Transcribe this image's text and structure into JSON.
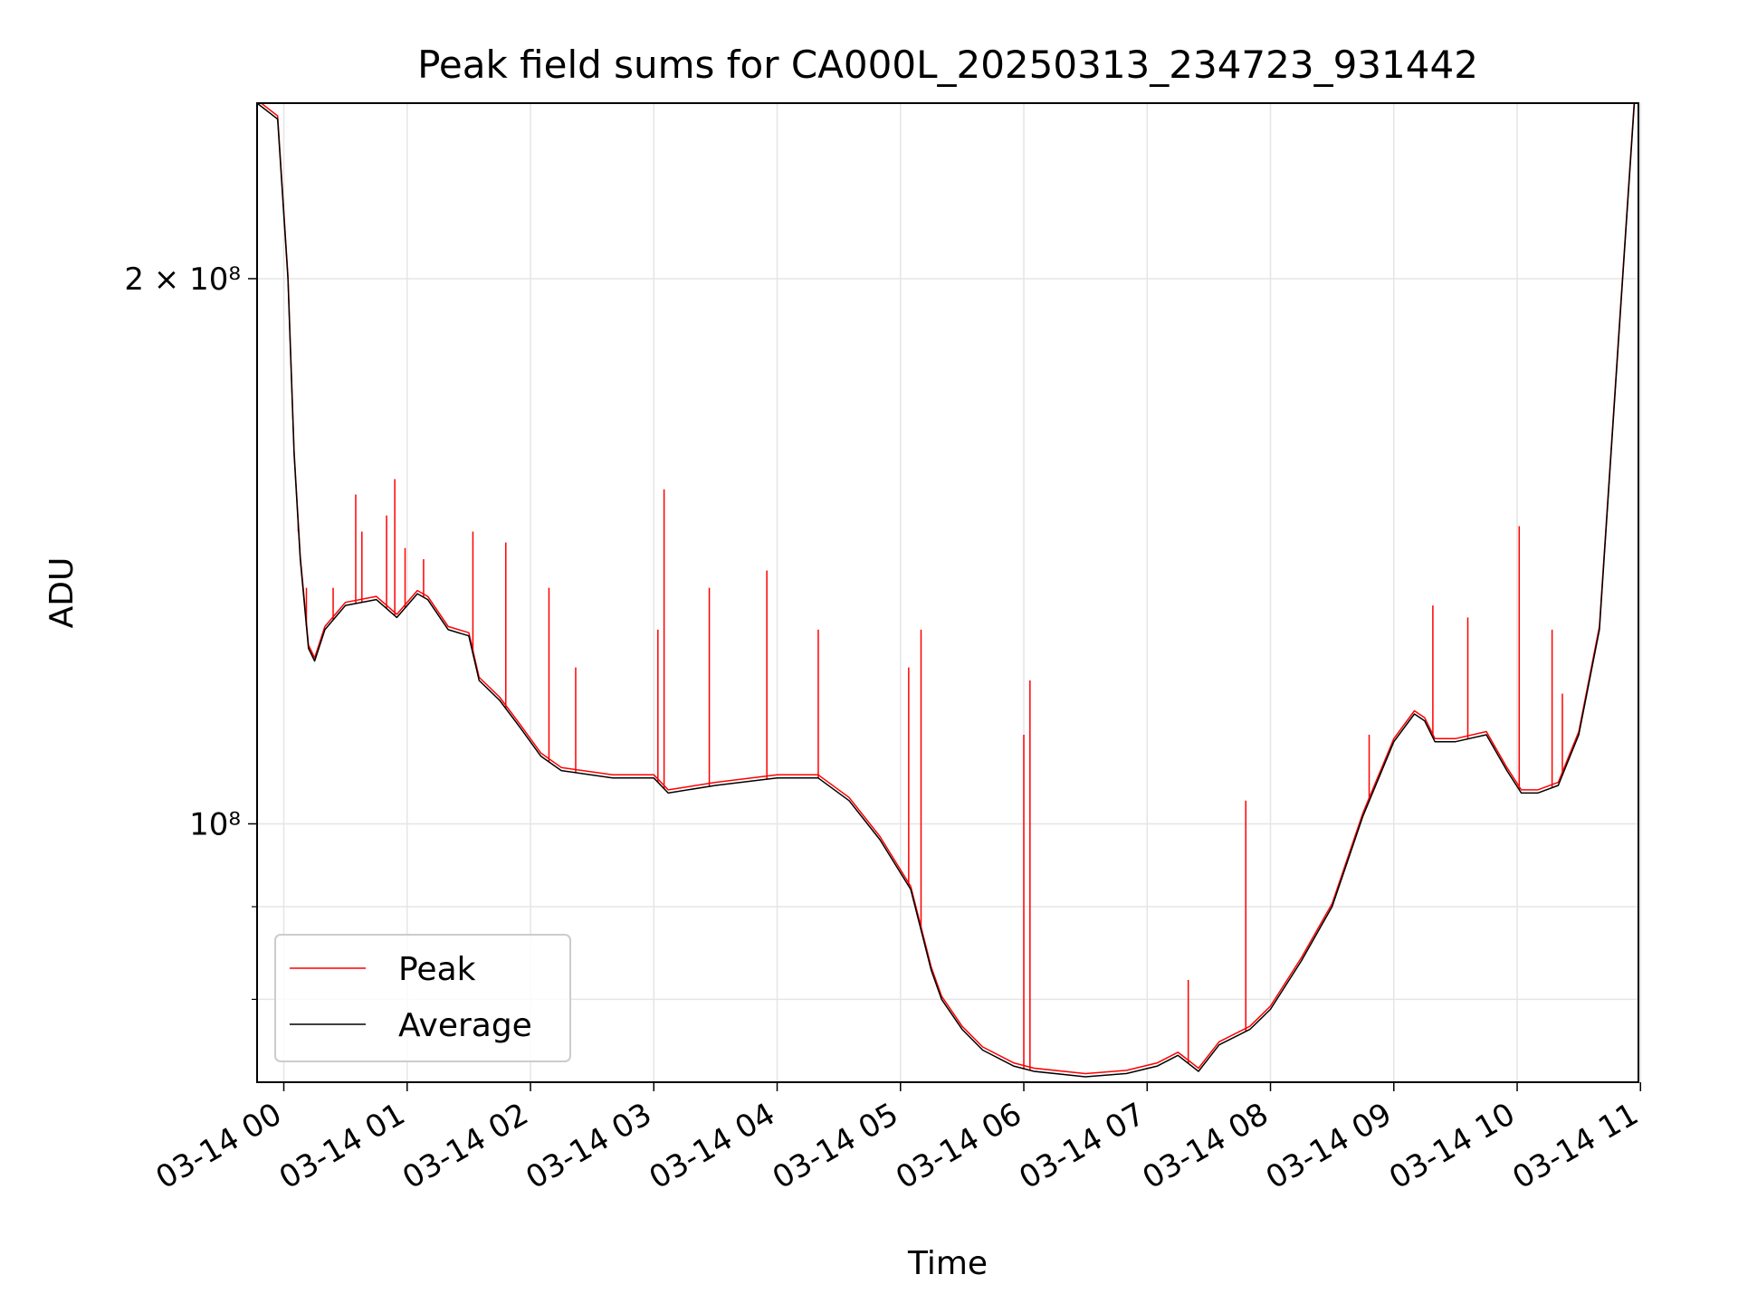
{
  "chart_data": {
    "type": "line",
    "title": "Peak field sums for CA000L_20250313_234723_931442",
    "xlabel": "Time",
    "ylabel": "ADU",
    "y_scale": "log",
    "ylim": [
      72000000,
      250000000
    ],
    "xlim": [
      "2025-03-13 23:47",
      "2025-03-14 10:59"
    ],
    "grid": true,
    "legend": {
      "position": "lower-left",
      "entries": [
        "Peak",
        "Average"
      ]
    },
    "x_ticks": [
      "03-14 00",
      "03-14 01",
      "03-14 02",
      "03-14 03",
      "03-14 04",
      "03-14 05",
      "03-14 06",
      "03-14 07",
      "03-14 08",
      "03-14 09",
      "03-14 10",
      "03-14 11"
    ],
    "y_tick_labels": [
      "2 × 10⁸",
      "10⁸"
    ],
    "colors": {
      "peak": "#ff0000",
      "average": "#000000",
      "grid": "#e5e5e5"
    },
    "series": [
      {
        "name": "Average",
        "x": [
          "2025-03-13 23:47",
          "2025-03-13 23:57",
          "2025-03-14 00:02",
          "2025-03-14 00:05",
          "2025-03-14 00:08",
          "2025-03-14 00:12",
          "2025-03-14 00:15",
          "2025-03-14 00:20",
          "2025-03-14 00:30",
          "2025-03-14 00:45",
          "2025-03-14 00:55",
          "2025-03-14 01:05",
          "2025-03-14 01:10",
          "2025-03-14 01:20",
          "2025-03-14 01:30",
          "2025-03-14 01:35",
          "2025-03-14 01:45",
          "2025-03-14 01:55",
          "2025-03-14 02:05",
          "2025-03-14 02:15",
          "2025-03-14 02:40",
          "2025-03-14 03:00",
          "2025-03-14 03:07",
          "2025-03-14 03:30",
          "2025-03-14 04:00",
          "2025-03-14 04:20",
          "2025-03-14 04:35",
          "2025-03-14 04:50",
          "2025-03-14 05:05",
          "2025-03-14 05:15",
          "2025-03-14 05:20",
          "2025-03-14 05:30",
          "2025-03-14 05:40",
          "2025-03-14 05:55",
          "2025-03-14 06:05",
          "2025-03-14 06:30",
          "2025-03-14 06:50",
          "2025-03-14 07:05",
          "2025-03-14 07:15",
          "2025-03-14 07:25",
          "2025-03-14 07:35",
          "2025-03-14 07:50",
          "2025-03-14 08:00",
          "2025-03-14 08:15",
          "2025-03-14 08:30",
          "2025-03-14 08:45",
          "2025-03-14 09:00",
          "2025-03-14 09:10",
          "2025-03-14 09:15",
          "2025-03-14 09:20",
          "2025-03-14 09:30",
          "2025-03-14 09:45",
          "2025-03-14 09:55",
          "2025-03-14 10:02",
          "2025-03-14 10:10",
          "2025-03-14 10:20",
          "2025-03-14 10:30",
          "2025-03-14 10:40",
          "2025-03-14 10:50",
          "2025-03-14 10:57"
        ],
        "y": [
          250000000,
          245000000,
          200000000,
          160000000,
          140000000,
          125000000,
          123000000,
          128000000,
          132000000,
          133000000,
          130000000,
          134000000,
          133000000,
          128000000,
          127000000,
          120000000,
          117000000,
          113000000,
          109000000,
          107000000,
          106000000,
          106000000,
          104000000,
          105000000,
          106000000,
          106000000,
          103000000,
          98000000,
          92000000,
          83000000,
          80000000,
          77000000,
          75000000,
          73500000,
          73000000,
          72500000,
          72800000,
          73500000,
          74500000,
          73000000,
          75500000,
          77000000,
          79000000,
          84000000,
          90000000,
          101000000,
          111000000,
          115000000,
          114000000,
          111000000,
          111000000,
          112000000,
          107000000,
          104000000,
          104000000,
          105000000,
          112000000,
          128000000,
          190000000,
          250000000
        ]
      },
      {
        "name": "Peak",
        "spikes": [
          {
            "x": "2025-03-14 00:07",
            "y": 145000000
          },
          {
            "x": "2025-03-14 00:11",
            "y": 135000000
          },
          {
            "x": "2025-03-14 00:24",
            "y": 135000000
          },
          {
            "x": "2025-03-14 00:35",
            "y": 152000000
          },
          {
            "x": "2025-03-14 00:38",
            "y": 145000000
          },
          {
            "x": "2025-03-14 00:50",
            "y": 148000000
          },
          {
            "x": "2025-03-14 00:54",
            "y": 155000000
          },
          {
            "x": "2025-03-14 00:59",
            "y": 142000000
          },
          {
            "x": "2025-03-14 01:08",
            "y": 140000000
          },
          {
            "x": "2025-03-14 01:32",
            "y": 145000000
          },
          {
            "x": "2025-03-14 01:48",
            "y": 143000000
          },
          {
            "x": "2025-03-14 02:09",
            "y": 135000000
          },
          {
            "x": "2025-03-14 02:22",
            "y": 122000000
          },
          {
            "x": "2025-03-14 03:02",
            "y": 128000000
          },
          {
            "x": "2025-03-14 03:05",
            "y": 153000000
          },
          {
            "x": "2025-03-14 03:27",
            "y": 135000000
          },
          {
            "x": "2025-03-14 03:55",
            "y": 138000000
          },
          {
            "x": "2025-03-14 04:20",
            "y": 128000000
          },
          {
            "x": "2025-03-14 05:04",
            "y": 122000000
          },
          {
            "x": "2025-03-14 05:10",
            "y": 128000000
          },
          {
            "x": "2025-03-14 06:00",
            "y": 112000000
          },
          {
            "x": "2025-03-14 06:03",
            "y": 120000000
          },
          {
            "x": "2025-03-14 07:20",
            "y": 82000000
          },
          {
            "x": "2025-03-14 07:48",
            "y": 103000000
          },
          {
            "x": "2025-03-14 08:48",
            "y": 112000000
          },
          {
            "x": "2025-03-14 09:19",
            "y": 132000000
          },
          {
            "x": "2025-03-14 09:36",
            "y": 130000000
          },
          {
            "x": "2025-03-14 10:01",
            "y": 146000000
          },
          {
            "x": "2025-03-14 10:17",
            "y": 128000000
          },
          {
            "x": "2025-03-14 10:22",
            "y": 118000000
          }
        ]
      }
    ]
  }
}
